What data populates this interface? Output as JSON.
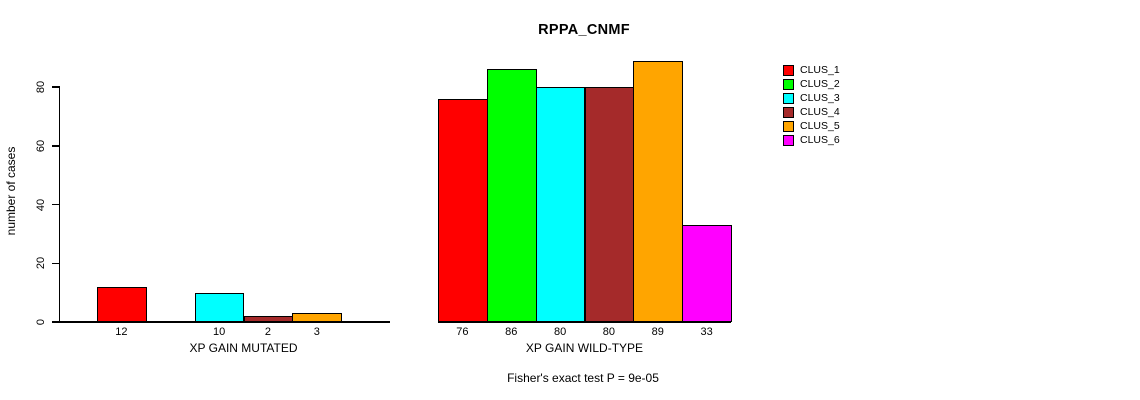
{
  "chart_data": {
    "type": "bar",
    "title": "RPPA_CNMF",
    "ylabel": "number of cases",
    "xlabel_groups": [
      "XP GAIN MUTATED",
      "XP GAIN WILD-TYPE"
    ],
    "ylim": [
      0,
      80
    ],
    "yticks": [
      0,
      20,
      40,
      60,
      80
    ],
    "series": [
      {
        "name": "CLUS_1",
        "color": "#FF0000",
        "values": [
          12,
          76
        ]
      },
      {
        "name": "CLUS_2",
        "color": "#00FF00",
        "values": [
          0,
          86
        ]
      },
      {
        "name": "CLUS_3",
        "color": "#00FFFF",
        "values": [
          10,
          80
        ]
      },
      {
        "name": "CLUS_4",
        "color": "#A52A2A",
        "values": [
          2,
          80
        ]
      },
      {
        "name": "CLUS_5",
        "color": "#FFA500",
        "values": [
          3,
          89
        ]
      },
      {
        "name": "CLUS_6",
        "color": "#FF00FF",
        "values": [
          0,
          33
        ]
      }
    ],
    "bar_value_labels": {
      "XP GAIN MUTATED": [
        12,
        10,
        2,
        3
      ],
      "XP GAIN WILD-TYPE": [
        76,
        86,
        80,
        80,
        89,
        33
      ]
    },
    "annotation": "Fisher's exact test P = 9e-05",
    "legend_position": "right",
    "grid": false,
    "axis_color": "#000000",
    "background_color": "#FFFFFF"
  }
}
